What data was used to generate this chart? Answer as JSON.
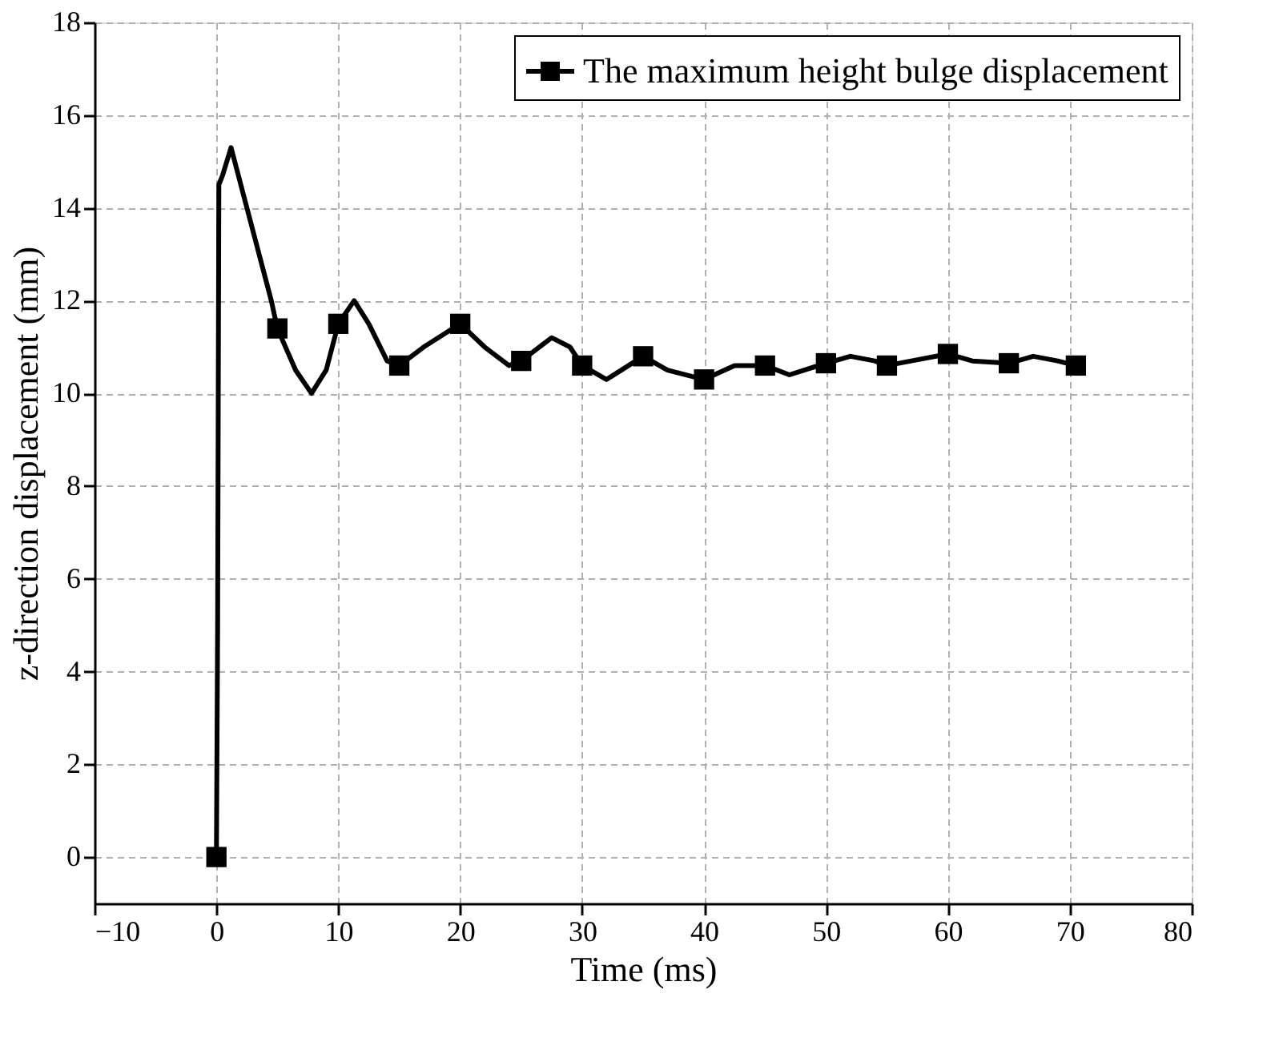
{
  "chart_data": {
    "type": "line",
    "xlabel": "Time (ms)",
    "ylabel": "z-direction displacement (mm)",
    "xlim": [
      -10,
      80
    ],
    "xticks": [
      -10,
      0,
      10,
      20,
      30,
      40,
      50,
      60,
      70,
      80
    ],
    "ylim": [
      -1,
      18
    ],
    "yticks": [
      0,
      2,
      4,
      6,
      8,
      10,
      12,
      14,
      16,
      18
    ],
    "grid": true,
    "legend": "top right",
    "line_style": "solid",
    "series": [
      {
        "name": "The maximum height bulge displacement",
        "color": "#000000",
        "marker": "none",
        "x": [
          0,
          0.1,
          0.2,
          0.5,
          1.2,
          2.5,
          4.5,
          5,
          6.5,
          7.8,
          9,
          10,
          11.3,
          12.5,
          14,
          15,
          17,
          20,
          22,
          24,
          25,
          27.5,
          29,
          30,
          32,
          35,
          37,
          40,
          42.5,
          45,
          47,
          50,
          52,
          54,
          55,
          57,
          60,
          62,
          65,
          67,
          69,
          70.5
        ],
        "values": [
          0,
          5,
          14.5,
          14.7,
          15.3,
          14,
          12,
          11.4,
          10.5,
          10,
          10.5,
          11.5,
          12,
          11.5,
          10.7,
          10.6,
          11,
          11.5,
          11,
          10.6,
          10.7,
          11.2,
          11,
          10.6,
          10.3,
          10.8,
          10.5,
          10.3,
          10.6,
          10.6,
          10.4,
          10.65,
          10.8,
          10.7,
          10.6,
          10.7,
          10.85,
          10.7,
          10.65,
          10.8,
          10.7,
          10.6
        ]
      },
      {
        "color": "#000000",
        "type": "scatter",
        "marker": "square",
        "x": [
          0,
          5,
          10,
          15,
          20,
          25,
          30,
          35,
          40,
          45,
          50,
          55,
          60,
          65,
          70.5
        ],
        "values": [
          0,
          11.4,
          11.5,
          10.6,
          11.5,
          10.7,
          10.6,
          10.8,
          10.3,
          10.6,
          10.65,
          10.6,
          10.85,
          10.65,
          10.6
        ]
      }
    ]
  }
}
